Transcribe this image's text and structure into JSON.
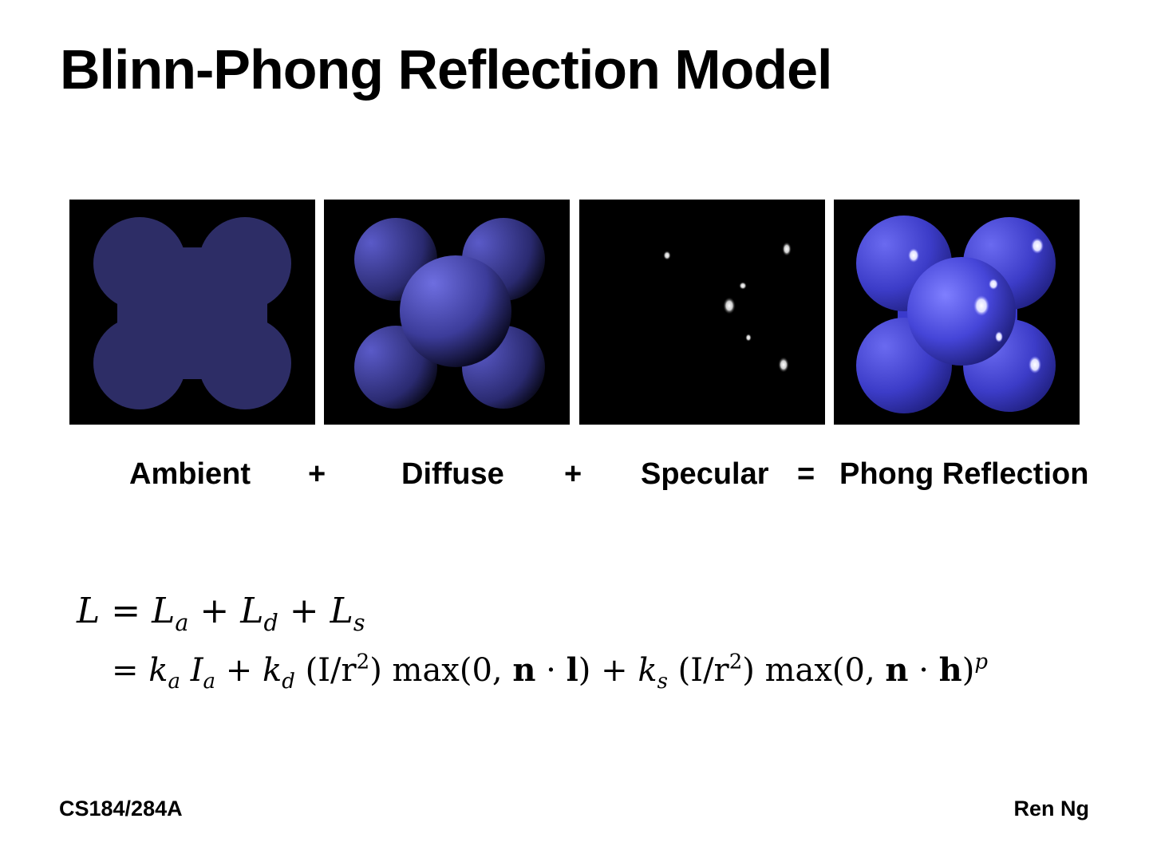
{
  "slide": {
    "title": "Blinn-Phong Reflection Model",
    "panels": [
      {
        "label": "Ambient"
      },
      {
        "label": "Diffuse"
      },
      {
        "label": "Specular"
      },
      {
        "label": "Phong Reflection"
      }
    ],
    "operators": [
      "+",
      "+",
      "="
    ],
    "equation": {
      "line1": {
        "L": "L",
        "eq": "=",
        "La": "L",
        "a": "a",
        "plus1": "+",
        "Ld": "L",
        "d": "d",
        "plus2": "+",
        "Ls": "L",
        "s": "s"
      },
      "line2": {
        "eq": "=",
        "k1": "k",
        "a1": "a",
        "I1": "I",
        "a2": "a",
        "plus1": "+",
        "k2": "k",
        "d": "d",
        "frac1": "(I/r",
        "sq1": "2",
        "close1": ")",
        "max1": "max(0,",
        "n1": "n",
        "dot1": "·",
        "l": "l",
        "close2": ")",
        "plus2": "+",
        "k3": "k",
        "s": "s",
        "frac2": "(I/r",
        "sq2": "2",
        "close3": ")",
        "max2": "max(0,",
        "n2": "n",
        "dot2": "·",
        "h": "h",
        "close4": ")",
        "p": "p"
      }
    },
    "footer_left": "CS184/284A",
    "footer_right": "Ren Ng",
    "colors": {
      "ambient": "#2d2d66",
      "diffuse": "#5a5ac8",
      "phong": "#5050e0",
      "background": "#000000"
    }
  }
}
